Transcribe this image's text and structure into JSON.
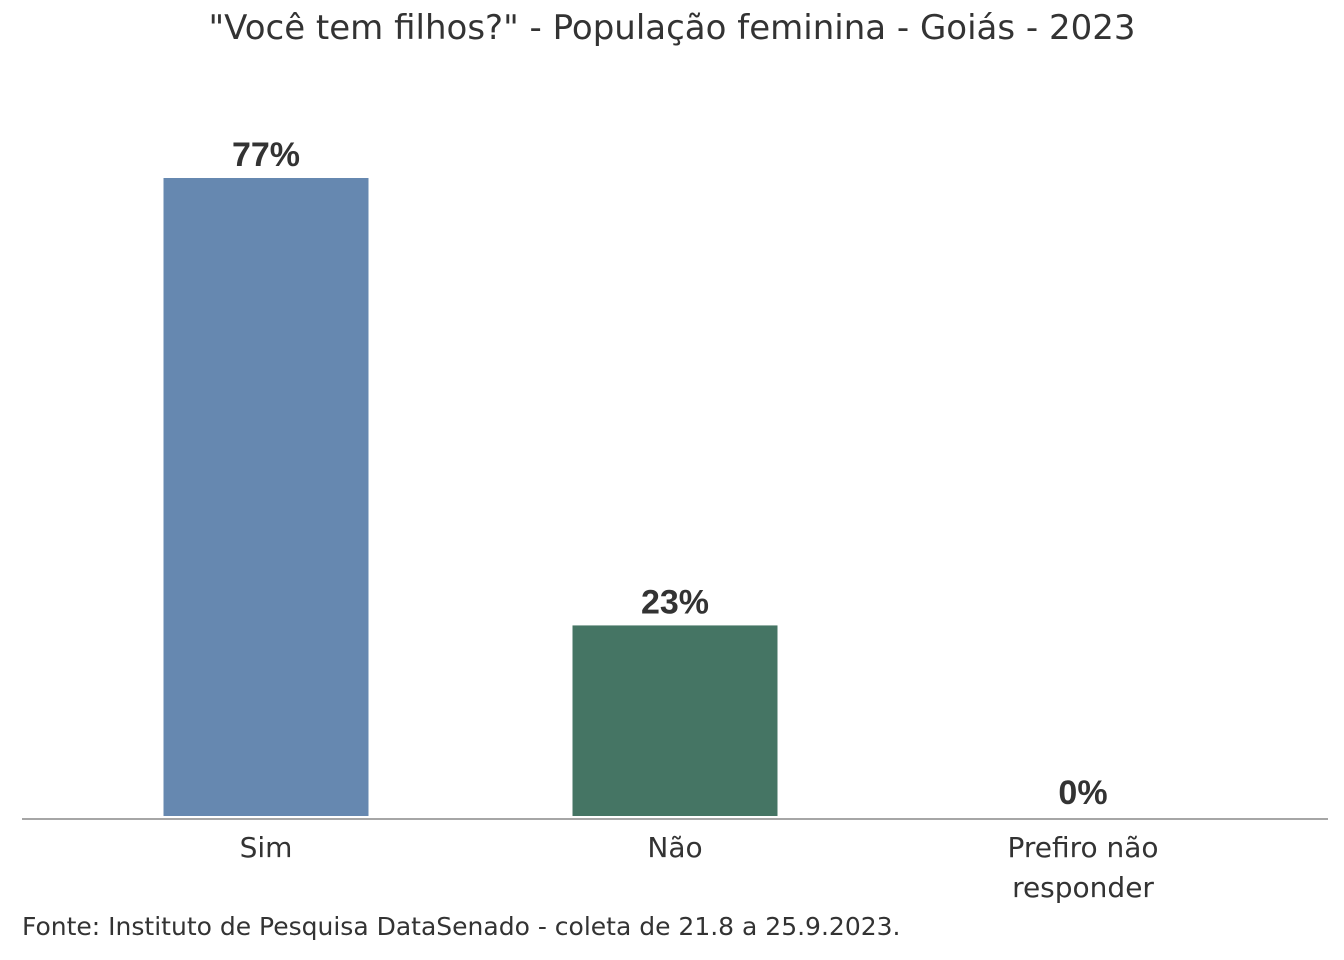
{
  "chart_data": {
    "type": "bar",
    "title": "\"Você tem filhos?\" - População feminina - Goiás - 2023",
    "categories": [
      "Sim",
      "Não",
      "Prefiro não responder"
    ],
    "category_lines": [
      [
        "Sim"
      ],
      [
        "Não"
      ],
      [
        "Prefiro não",
        "responder"
      ]
    ],
    "values": [
      77,
      23,
      0
    ],
    "data_labels": [
      "77%",
      "23%",
      "0%"
    ],
    "bar_colors": [
      "#6688b0",
      "#457564",
      "#6688b0"
    ],
    "ylim": [
      0,
      77
    ],
    "xlabel": "",
    "ylabel": "",
    "grid": false,
    "legend": "none"
  },
  "source": "Fonte: Instituto de Pesquisa DataSenado - coleta de 21.8 a 25.9.2023."
}
